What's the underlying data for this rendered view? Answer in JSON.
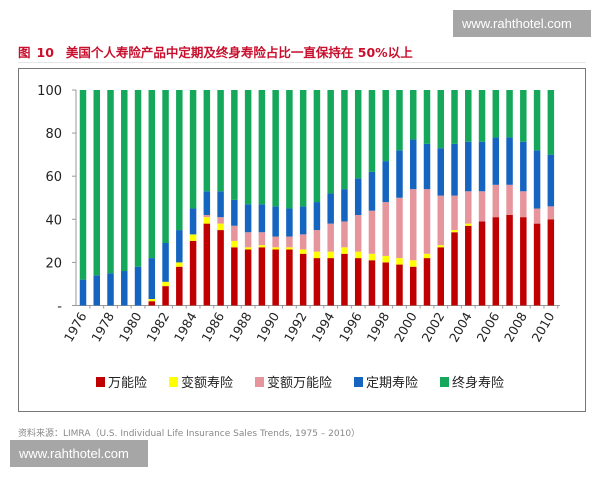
{
  "header": {
    "fig_label": "图",
    "fig_number": "10",
    "title": "美国个人寿险产品中定期及终身寿险占比一直保持在 50%以上"
  },
  "source": "资料来源：LIMRA（U.S. Individual Life Insurance Sales Trends, 1975 – 2010）",
  "watermarks": [
    "www.rahthotel.com",
    "www.rahthotel.com"
  ],
  "chart_data": {
    "type": "bar",
    "stacked": true,
    "title": "",
    "xlabel": "",
    "ylabel": "",
    "ylim": [
      0,
      100
    ],
    "yticks": [
      0,
      20,
      40,
      60,
      80,
      100
    ],
    "ytick_labels": [
      "-",
      "20",
      "40",
      "60",
      "80",
      "100"
    ],
    "grid": false,
    "legend_position": "bottom",
    "categories": [
      1976,
      1977,
      1978,
      1979,
      1980,
      1981,
      1982,
      1983,
      1984,
      1985,
      1986,
      1987,
      1988,
      1989,
      1990,
      1991,
      1992,
      1993,
      1994,
      1995,
      1996,
      1997,
      1998,
      1999,
      2000,
      2001,
      2002,
      2003,
      2004,
      2005,
      2006,
      2007,
      2008,
      2009,
      2010
    ],
    "xtick_labels": [
      "1976",
      "1978",
      "1980",
      "1982",
      "1984",
      "1986",
      "1988",
      "1990",
      "1992",
      "1994",
      "1996",
      "1998",
      "2000",
      "2002",
      "2004",
      "2006",
      "2008",
      "2010"
    ],
    "series": [
      {
        "name": "万能险",
        "color": "#c00000",
        "values": [
          0,
          0,
          0,
          0,
          0,
          2,
          9,
          18,
          30,
          38,
          35,
          27,
          26,
          27,
          26,
          26,
          24,
          22,
          22,
          24,
          22,
          21,
          20,
          19,
          18,
          22,
          27,
          34,
          37,
          39,
          41,
          42,
          41,
          38,
          40
        ]
      },
      {
        "name": "变额寿险",
        "color": "#ffff00",
        "values": [
          0,
          0,
          0,
          0,
          0,
          1,
          2,
          2,
          3,
          3,
          3,
          3,
          1,
          1,
          1,
          1,
          2,
          3,
          3,
          3,
          3,
          3,
          3,
          3,
          3,
          2,
          1,
          1,
          1,
          0,
          0,
          0,
          0,
          0,
          0
        ]
      },
      {
        "name": "变额万能险",
        "color": "#e6959c",
        "values": [
          0,
          0,
          0,
          0,
          0,
          0,
          0,
          0,
          0,
          1,
          3,
          7,
          7,
          6,
          5,
          5,
          7,
          10,
          13,
          12,
          17,
          20,
          25,
          28,
          33,
          30,
          23,
          16,
          15,
          14,
          15,
          14,
          12,
          7,
          6
        ]
      },
      {
        "name": "定期寿险",
        "color": "#1565c0",
        "values": [
          12,
          14,
          15,
          16,
          18,
          19,
          18,
          15,
          12,
          11,
          12,
          12,
          13,
          13,
          14,
          13,
          13,
          13,
          14,
          15,
          17,
          18,
          19,
          22,
          23,
          21,
          22,
          24,
          23,
          23,
          22,
          22,
          23,
          27,
          24
        ]
      },
      {
        "name": "终身寿险",
        "color": "#16a85a",
        "values": [
          88,
          86,
          85,
          84,
          82,
          78,
          71,
          65,
          55,
          47,
          47,
          51,
          53,
          53,
          54,
          55,
          54,
          52,
          48,
          46,
          41,
          38,
          33,
          28,
          23,
          25,
          27,
          25,
          24,
          24,
          22,
          22,
          24,
          28,
          30
        ]
      }
    ]
  }
}
